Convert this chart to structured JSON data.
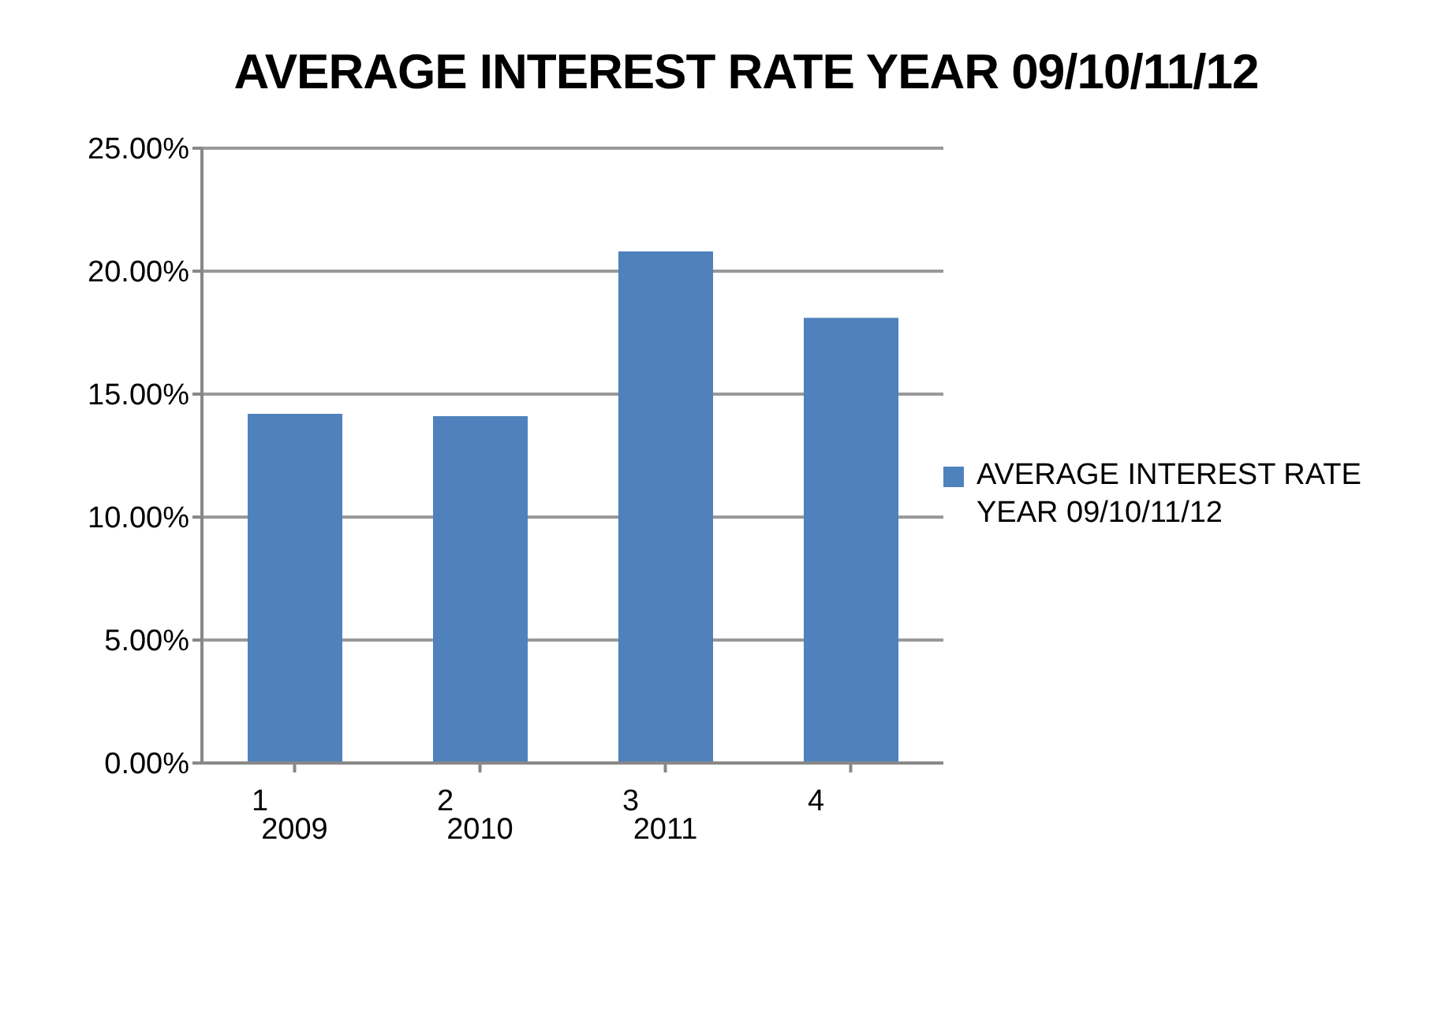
{
  "chart_data": {
    "type": "bar",
    "title": "AVERAGE INTEREST RATE YEAR 09/10/11/12",
    "categories": [
      "1\n2009",
      "2\n2010",
      "3\n2011",
      "4"
    ],
    "series": [
      {
        "name": "AVERAGE INTEREST RATE YEAR 09/10/11/12",
        "color": "#4f81bd",
        "values": [
          14.2,
          14.1,
          20.8,
          18.1
        ]
      }
    ],
    "ylim": [
      0,
      25
    ],
    "yticks": [
      {
        "value": 0,
        "label": "0.00%"
      },
      {
        "value": 5,
        "label": "5.00%"
      },
      {
        "value": 10,
        "label": "10.00%"
      },
      {
        "value": 15,
        "label": "15.00%"
      },
      {
        "value": 20,
        "label": "20.00%"
      },
      {
        "value": 25,
        "label": "25.00%"
      }
    ],
    "grid": "y",
    "legend": "right"
  }
}
